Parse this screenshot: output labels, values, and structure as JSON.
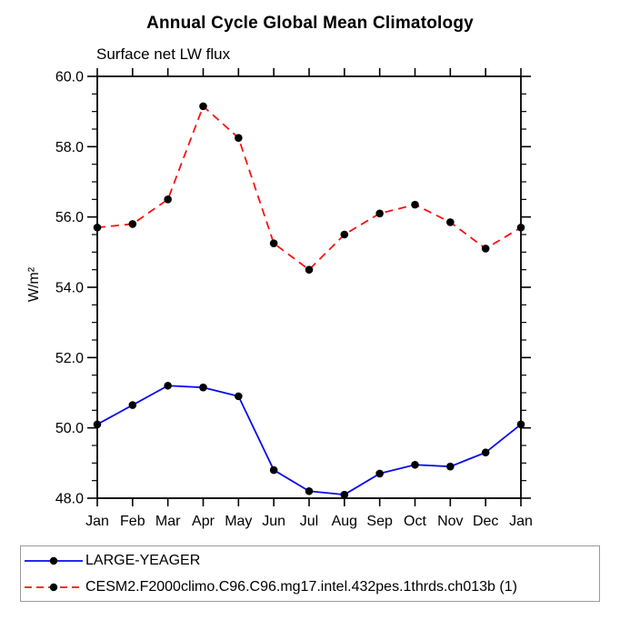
{
  "title": "Annual Cycle Global Mean Climatology",
  "subtitle": "Surface net LW flux",
  "ylabel": "W/m²",
  "colors": {
    "axis": "#000000",
    "marker": "#000000",
    "series_blue": "#0a0af0",
    "series_red": "#fb0f0f",
    "legend_border": "#9a9a9a"
  },
  "legend": {
    "items": [
      {
        "label": "LARGE-YEAGER",
        "color": "#0a0af0",
        "dash": ""
      },
      {
        "label": "CESM2.F2000climo.C96.C96.mg17.intel.432pes.1thrds.ch013b (1)",
        "color": "#fb0f0f",
        "dash": "8 5"
      }
    ]
  },
  "chart_data": {
    "type": "line",
    "title": "Annual Cycle Global Mean Climatology",
    "subtitle": "Surface net LW flux",
    "ylabel": "W/m²",
    "categories": [
      "Jan",
      "Feb",
      "Mar",
      "Apr",
      "May",
      "Jun",
      "Jul",
      "Aug",
      "Sep",
      "Oct",
      "Nov",
      "Dec",
      "Jan"
    ],
    "series": [
      {
        "name": "LARGE-YEAGER",
        "color": "#0a0af0",
        "style": "solid",
        "values": [
          50.1,
          50.65,
          51.2,
          51.15,
          50.9,
          48.8,
          48.2,
          48.1,
          48.7,
          48.95,
          48.9,
          49.3,
          50.1
        ]
      },
      {
        "name": "CESM2.F2000climo.C96.C96.mg17.intel.432pes.1thrds.ch013b (1)",
        "color": "#fb0f0f",
        "style": "dashed",
        "values": [
          55.7,
          55.8,
          56.5,
          59.15,
          58.25,
          55.25,
          54.5,
          55.5,
          56.1,
          56.35,
          55.85,
          55.1,
          55.7
        ]
      }
    ],
    "ylim": [
      48.0,
      60.0
    ],
    "y_major_step": 2.0,
    "y_minor_step": 0.5,
    "y_tick_format": "one-decimal",
    "marker": "filled-circle",
    "marker_color": "#000000",
    "grid": false,
    "legend_position": "bottom"
  }
}
